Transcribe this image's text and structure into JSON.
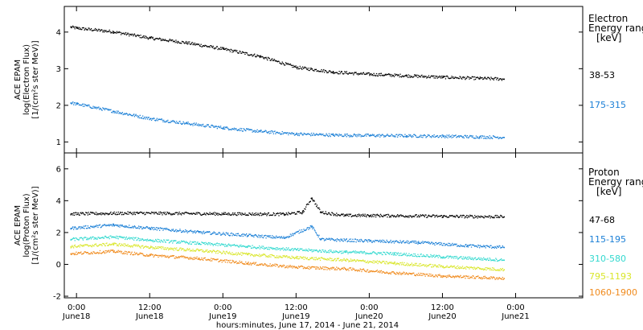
{
  "chart_data": {
    "xlabel": "hours:minutes, June 17, 2014 - June 21, 2014",
    "x_ticks": [
      {
        "t": 0,
        "time": "0:00",
        "day": "June18"
      },
      {
        "t": 12,
        "time": "12:00",
        "day": "June18"
      },
      {
        "t": 24,
        "time": "0:00",
        "day": "June19"
      },
      {
        "t": 36,
        "time": "12:00",
        "day": "June19"
      },
      {
        "t": 48,
        "time": "0:00",
        "day": "June20"
      },
      {
        "t": 60,
        "time": "12:00",
        "day": "June20"
      },
      {
        "t": 72,
        "time": "0:00",
        "day": "June21"
      }
    ],
    "xlim": [
      -2,
      83
    ],
    "panels": [
      {
        "type": "scatter",
        "ylabel_lines": [
          "ACE EPAM",
          "log(Electron Flux)",
          "[1/(cm²s ster MeV)]"
        ],
        "ylim": [
          0.7,
          4.7
        ],
        "yticks": [
          1,
          2,
          3,
          4
        ],
        "legend_title": [
          "Electron",
          "Energy ranges",
          "[keV]"
        ],
        "series": [
          {
            "name": "38-53",
            "color": "#000000",
            "points": [
              [
                -1,
                4.15
              ],
              [
                0,
                4.12
              ],
              [
                6,
                4.02
              ],
              [
                12,
                3.85
              ],
              [
                18,
                3.72
              ],
              [
                24,
                3.55
              ],
              [
                30,
                3.35
              ],
              [
                36,
                3.05
              ],
              [
                42,
                2.92
              ],
              [
                48,
                2.86
              ],
              [
                54,
                2.82
              ],
              [
                60,
                2.78
              ],
              [
                66,
                2.75
              ],
              [
                70,
                2.73
              ]
            ]
          },
          {
            "name": "175-315",
            "color": "#1a7fd6",
            "points": [
              [
                -1,
                2.08
              ],
              [
                0,
                2.05
              ],
              [
                6,
                1.85
              ],
              [
                12,
                1.65
              ],
              [
                18,
                1.52
              ],
              [
                24,
                1.4
              ],
              [
                30,
                1.3
              ],
              [
                36,
                1.23
              ],
              [
                42,
                1.2
              ],
              [
                48,
                1.19
              ],
              [
                54,
                1.18
              ],
              [
                60,
                1.17
              ],
              [
                66,
                1.15
              ],
              [
                70,
                1.14
              ]
            ]
          }
        ]
      },
      {
        "type": "scatter",
        "ylabel_lines": [
          "ACE EPAM",
          "log(Proton Flux)",
          "[1/(cm²s ster MeV)]"
        ],
        "ylim": [
          -2.1,
          7.0
        ],
        "yticks": [
          -2,
          0,
          2,
          4,
          6
        ],
        "legend_title": [
          "Proton",
          "Energy ranges",
          "[keV]"
        ],
        "series": [
          {
            "name": "47-68",
            "color": "#000000",
            "points": [
              [
                -1,
                3.2
              ],
              [
                10,
                3.25
              ],
              [
                24,
                3.2
              ],
              [
                34,
                3.18
              ],
              [
                37,
                3.3
              ],
              [
                38.5,
                4.2
              ],
              [
                40,
                3.3
              ],
              [
                44,
                3.1
              ],
              [
                48,
                3.1
              ],
              [
                60,
                3.05
              ],
              [
                70,
                3.02
              ]
            ]
          },
          {
            "name": "115-195",
            "color": "#1a7fd6",
            "points": [
              [
                -1,
                2.3
              ],
              [
                6,
                2.5
              ],
              [
                12,
                2.3
              ],
              [
                20,
                2.05
              ],
              [
                28,
                1.85
              ],
              [
                34,
                1.7
              ],
              [
                38.5,
                2.4
              ],
              [
                40,
                1.6
              ],
              [
                48,
                1.5
              ],
              [
                56,
                1.4
              ],
              [
                64,
                1.2
              ],
              [
                70,
                1.1
              ]
            ]
          },
          {
            "name": "310-580",
            "color": "#33d9cf",
            "points": [
              [
                -1,
                1.6
              ],
              [
                6,
                1.75
              ],
              [
                12,
                1.55
              ],
              [
                20,
                1.35
              ],
              [
                28,
                1.15
              ],
              [
                36,
                0.95
              ],
              [
                44,
                0.8
              ],
              [
                52,
                0.7
              ],
              [
                60,
                0.5
              ],
              [
                70,
                0.3
              ]
            ]
          },
          {
            "name": "795-1193",
            "color": "#d9e62a",
            "points": [
              [
                -1,
                1.15
              ],
              [
                6,
                1.3
              ],
              [
                12,
                1.1
              ],
              [
                20,
                0.9
              ],
              [
                28,
                0.65
              ],
              [
                36,
                0.45
              ],
              [
                44,
                0.3
              ],
              [
                52,
                0.1
              ],
              [
                60,
                -0.1
              ],
              [
                70,
                -0.3
              ]
            ]
          },
          {
            "name": "1060-1900",
            "color": "#f08a1c",
            "points": [
              [
                -1,
                0.7
              ],
              [
                6,
                0.85
              ],
              [
                12,
                0.6
              ],
              [
                20,
                0.4
              ],
              [
                28,
                0.1
              ],
              [
                36,
                -0.15
              ],
              [
                44,
                -0.25
              ],
              [
                52,
                -0.5
              ],
              [
                60,
                -0.7
              ],
              [
                70,
                -0.85
              ]
            ]
          }
        ]
      }
    ]
  }
}
